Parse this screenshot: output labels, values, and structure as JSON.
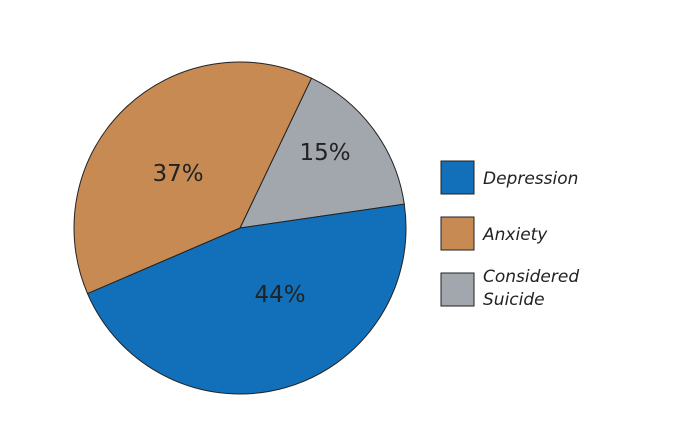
{
  "chart_data": {
    "type": "pie",
    "title": "",
    "slices": [
      {
        "label": "Considered Suicide",
        "legend_lines": [
          "Considered",
          "Suicide"
        ],
        "value": 15,
        "value_label": "15%",
        "color": "#a2a7ae"
      },
      {
        "label": "Depression",
        "legend_lines": [
          "Depression"
        ],
        "value": 44,
        "value_label": "44%",
        "color": "#1170b9"
      },
      {
        "label": "Anxiety",
        "legend_lines": [
          "Anxiety"
        ],
        "value": 37,
        "value_label": "37%",
        "color": "#c68a52"
      }
    ],
    "legend_order": [
      "Depression",
      "Anxiety",
      "Considered Suicide"
    ],
    "legend_position": "right"
  }
}
